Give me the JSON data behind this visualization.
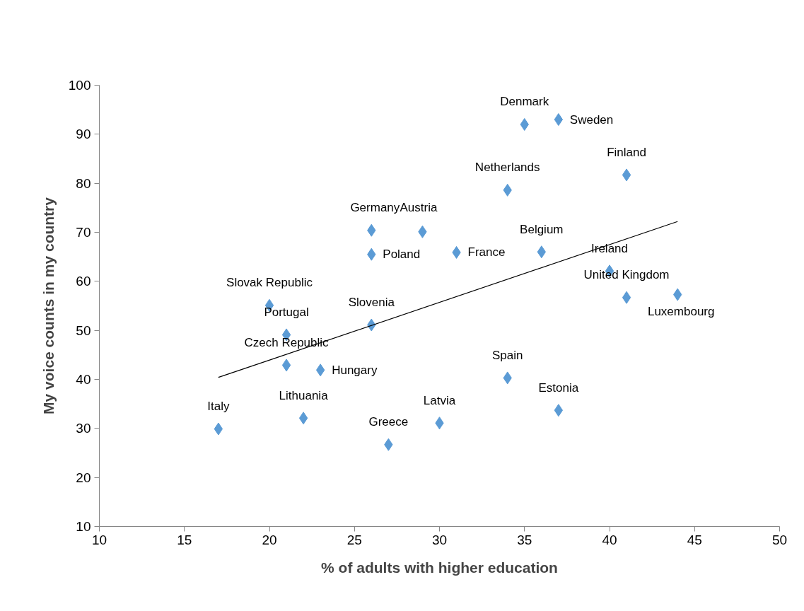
{
  "chart_data": {
    "type": "scatter",
    "xlabel": "% of adults with higher education",
    "ylabel": "My voice counts in my country",
    "xlim": [
      10,
      50
    ],
    "xticks": [
      10,
      15,
      20,
      25,
      30,
      35,
      40,
      45,
      50
    ],
    "ylim": [
      10,
      100
    ],
    "yticks": [
      10,
      20,
      30,
      40,
      50,
      60,
      70,
      80,
      90,
      100
    ],
    "grid": false,
    "series": [
      {
        "marker": "diamond",
        "color": "#5b9bd5",
        "x": [
          35,
          37,
          41,
          34,
          26,
          29,
          31,
          26,
          36,
          40,
          41,
          44,
          20,
          21,
          26,
          21,
          23,
          34,
          37,
          17,
          22,
          30,
          27
        ],
        "values": [
          92,
          93,
          81.7,
          78.6,
          70.4,
          70.1,
          65.9,
          65.5,
          66,
          62.1,
          56.7,
          57.3,
          55.1,
          49.1,
          51.1,
          42.9,
          41.9,
          40.3,
          33.7,
          29.9,
          32.1,
          31.1,
          26.7
        ]
      },
      {
        "type": "line",
        "color": "#000000",
        "x": [
          17,
          44
        ],
        "values": [
          40.4,
          72.2
        ]
      }
    ],
    "annotations": [
      {
        "text": "Denmark",
        "x": 35,
        "y": 92
      },
      {
        "text": "Sweden",
        "x": 37,
        "y": 93
      },
      {
        "text": "Finland",
        "x": 41,
        "y": 81.7
      },
      {
        "text": "Netherlands",
        "x": 34,
        "y": 78.6
      },
      {
        "text": "Germany",
        "x": 26,
        "y": 70.4
      },
      {
        "text": "Austria",
        "x": 29,
        "y": 70.1
      },
      {
        "text": "France",
        "x": 31,
        "y": 65.9
      },
      {
        "text": "Poland",
        "x": 26,
        "y": 65.5
      },
      {
        "text": "Belgium",
        "x": 36,
        "y": 66
      },
      {
        "text": "Ireland",
        "x": 40,
        "y": 62.1
      },
      {
        "text": "United Kingdom",
        "x": 41,
        "y": 56.7
      },
      {
        "text": "Luxembourg",
        "x": 44,
        "y": 57.3
      },
      {
        "text": "Slovak Republic",
        "x": 20,
        "y": 55.1
      },
      {
        "text": "Portugal",
        "x": 21,
        "y": 49.1
      },
      {
        "text": "Slovenia",
        "x": 26,
        "y": 51.1
      },
      {
        "text": "Czech Republic",
        "x": 21,
        "y": 42.9
      },
      {
        "text": "Hungary",
        "x": 23,
        "y": 41.9
      },
      {
        "text": "Spain",
        "x": 34,
        "y": 40.3
      },
      {
        "text": "Estonia",
        "x": 37,
        "y": 33.7
      },
      {
        "text": "Italy",
        "x": 17,
        "y": 29.9
      },
      {
        "text": "Lithuania",
        "x": 22,
        "y": 32.1
      },
      {
        "text": "Latvia",
        "x": 30,
        "y": 31.1
      },
      {
        "text": "Greece",
        "x": 27,
        "y": 26.7
      }
    ]
  }
}
